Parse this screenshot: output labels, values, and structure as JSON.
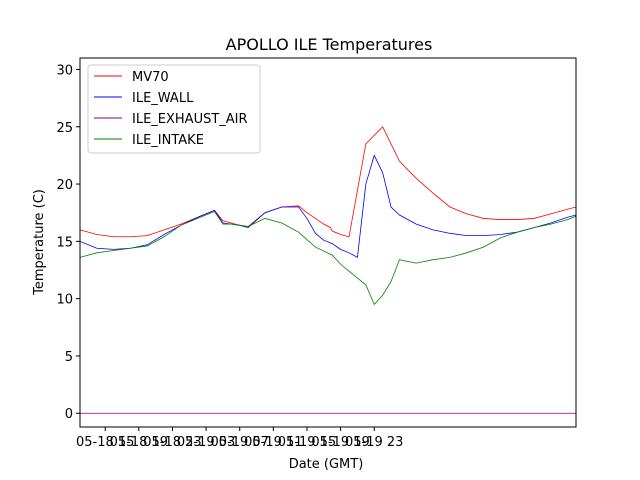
{
  "chart_data": {
    "type": "line",
    "title": "APOLLO ILE Temperatures",
    "xlabel": "Date (GMT)",
    "ylabel": "Temperature (C)",
    "xlim": [
      12,
      71
    ],
    "ylim": [
      -1.2,
      31
    ],
    "yticks": [
      0,
      5,
      10,
      15,
      20,
      25,
      30
    ],
    "xticks": [
      {
        "x": 15,
        "label": "05-18 15"
      },
      {
        "x": 19,
        "label": "05-18 19"
      },
      {
        "x": 23,
        "label": "05-18 23"
      },
      {
        "x": 27,
        "label": "05-19 03"
      },
      {
        "x": 31,
        "label": "05-19 07"
      },
      {
        "x": 35,
        "label": "05-19 11"
      },
      {
        "x": 39,
        "label": "05-19 15"
      },
      {
        "x": 43,
        "label": "05-19 19"
      },
      {
        "x": 47,
        "label": "05-19 23"
      }
    ],
    "legend_position": "top-left",
    "series": [
      {
        "name": "MV70",
        "color": "#ff0000",
        "x": [
          12,
          14,
          16,
          18,
          20,
          22,
          24,
          26,
          28,
          29,
          30,
          31,
          32,
          34,
          36,
          38,
          39,
          40,
          41,
          41.8,
          42,
          43,
          44,
          46,
          48,
          50,
          52,
          54,
          56,
          58,
          60,
          62,
          64,
          66,
          68,
          70,
          71
        ],
        "y": [
          16.0,
          15.6,
          15.4,
          15.4,
          15.5,
          16.0,
          16.5,
          17.1,
          17.7,
          16.8,
          16.6,
          16.4,
          16.3,
          17.5,
          18.0,
          18.1,
          17.5,
          17.0,
          16.5,
          16.2,
          15.9,
          15.6,
          15.4,
          23.5,
          25.0,
          22.0,
          20.5,
          19.2,
          18.0,
          17.4,
          17.0,
          16.9,
          16.9,
          17.0,
          17.4,
          17.8,
          18.0
        ]
      },
      {
        "name": "ILE_WALL",
        "color": "#0000ff",
        "x": [
          12,
          14,
          16,
          18,
          20,
          22,
          24,
          26,
          28,
          29,
          30,
          31,
          32,
          34,
          36,
          38,
          39,
          40,
          41,
          42,
          43,
          44,
          45,
          46,
          47,
          48,
          49,
          50,
          52,
          54,
          56,
          58,
          60,
          62,
          64,
          66,
          68,
          70,
          71
        ],
        "y": [
          15.0,
          14.4,
          14.3,
          14.4,
          14.7,
          15.6,
          16.4,
          17.1,
          17.7,
          16.6,
          16.5,
          16.4,
          16.2,
          17.5,
          18.0,
          18.0,
          17.0,
          15.7,
          15.1,
          14.8,
          14.3,
          14.0,
          13.6,
          20.0,
          22.5,
          21.0,
          18.0,
          17.3,
          16.5,
          16.0,
          15.7,
          15.5,
          15.5,
          15.6,
          15.8,
          16.2,
          16.6,
          17.1,
          17.3
        ]
      },
      {
        "name": "ILE_EXHAUST_AIR",
        "color": "#800080",
        "x": [
          12,
          71
        ],
        "y": [
          0.0,
          0.0
        ]
      },
      {
        "name": "ILE_INTAKE",
        "color": "#008000",
        "x": [
          12,
          14,
          16,
          18,
          20,
          22,
          24,
          26,
          28,
          29,
          30,
          31,
          32,
          34,
          36,
          38,
          40,
          42,
          43,
          44,
          45,
          46,
          47,
          48,
          49,
          50,
          52,
          54,
          56,
          58,
          60,
          62,
          64,
          66,
          68,
          70,
          71
        ],
        "y": [
          13.6,
          14.0,
          14.2,
          14.4,
          14.6,
          15.4,
          16.4,
          17.0,
          17.6,
          16.5,
          16.5,
          16.4,
          16.3,
          17.0,
          16.6,
          15.8,
          14.5,
          13.8,
          13.0,
          12.4,
          11.8,
          11.2,
          9.5,
          10.3,
          11.5,
          13.4,
          13.1,
          13.4,
          13.6,
          14.0,
          14.5,
          15.3,
          15.8,
          16.2,
          16.5,
          16.9,
          17.2
        ]
      }
    ]
  }
}
